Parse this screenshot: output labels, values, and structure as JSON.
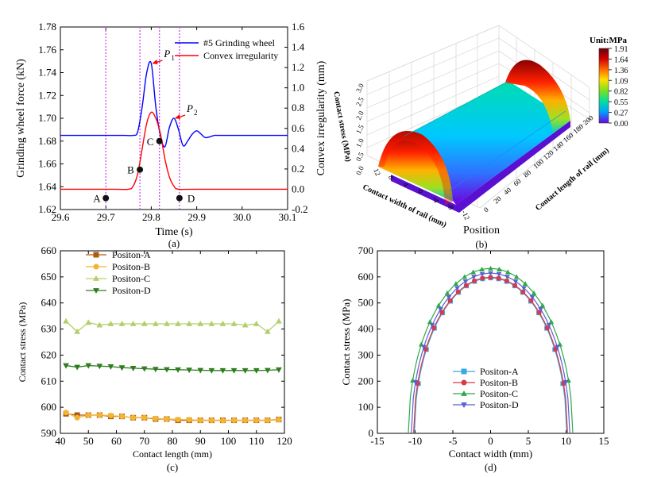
{
  "chart_data": [
    {
      "panel": "(a)",
      "type": "line",
      "xlabel": "Time (s)",
      "ylabel": "Grinding wheel force (kN)",
      "y2label": "Convex  irregularity (mm)",
      "xlim": [
        29.6,
        30.1
      ],
      "ylim": [
        1.62,
        1.78
      ],
      "y2lim": [
        -0.2,
        1.6
      ],
      "xticks": [
        "29.6",
        "29.7",
        "29.8",
        "29.9",
        "30.0",
        "30.1"
      ],
      "yticks": [
        "1.62",
        "1.64",
        "1.66",
        "1.68",
        "1.70",
        "1.72",
        "1.74",
        "1.76",
        "1.78"
      ],
      "y2ticks": [
        "-0.2",
        "0.0",
        "0.2",
        "0.4",
        "0.6",
        "0.8",
        "1.0",
        "1.2",
        "1.4",
        "1.6"
      ],
      "legend_position": "top-right",
      "series": [
        {
          "name": "#5 Grinding wheel",
          "axis": "left",
          "color": "#0000ff",
          "x": [
            29.6,
            29.72,
            29.74,
            29.76,
            29.77,
            29.78,
            29.79,
            29.8,
            29.81,
            29.82,
            29.83,
            29.84,
            29.85,
            29.86,
            29.87,
            29.88,
            29.89,
            29.9,
            29.91,
            29.92,
            29.94,
            29.96,
            30.1
          ],
          "y": [
            1.685,
            1.685,
            1.685,
            1.685,
            1.688,
            1.71,
            1.74,
            1.748,
            1.71,
            1.685,
            1.675,
            1.692,
            1.7,
            1.69,
            1.676,
            1.68,
            1.686,
            1.689,
            1.686,
            1.683,
            1.685,
            1.685,
            1.685
          ]
        },
        {
          "name": "Convex irregularity",
          "axis": "right",
          "color": "#ff0000",
          "x": [
            29.6,
            29.72,
            29.75,
            29.76,
            29.77,
            29.78,
            29.79,
            29.8,
            29.81,
            29.82,
            29.83,
            29.84,
            29.85,
            29.86,
            29.9,
            30.1
          ],
          "y": [
            0,
            0,
            0,
            0.03,
            0.15,
            0.4,
            0.65,
            0.76,
            0.7,
            0.55,
            0.3,
            0.12,
            0.03,
            0,
            0,
            0
          ]
        }
      ],
      "points": [
        {
          "label": "A",
          "x": 29.7,
          "y": 1.63
        },
        {
          "label": "B",
          "x": 29.775,
          "y": 1.655
        },
        {
          "label": "C",
          "x": 29.818,
          "y": 1.68
        },
        {
          "label": "D",
          "x": 29.862,
          "y": 1.63
        }
      ],
      "annotations": [
        {
          "label": "P",
          "sub": "1",
          "x": 29.8,
          "y": 1.748
        },
        {
          "label": "P",
          "sub": "2",
          "x": 29.85,
          "y": 1.7
        }
      ],
      "vlines_x": [
        29.7,
        29.775,
        29.818,
        29.862
      ],
      "vline_color": "#cc44ff"
    },
    {
      "panel": "(b)",
      "type": "surface3d",
      "zlabel": "Contact stress (MPa)",
      "xlabel": "Contact width of rail (mm)",
      "ylabel": "Contact length of rail (mm)",
      "footer_label": "Position",
      "x_ticks": [
        "12",
        "8",
        "4",
        "0",
        "-4",
        "-8",
        "-12"
      ],
      "y_ticks": [
        "0",
        "20",
        "40",
        "60",
        "80",
        "100",
        "120",
        "140",
        "160",
        "180",
        "200"
      ],
      "z_ticks": [
        "0.0",
        "0.5",
        "1.0",
        "1.5",
        "2.0",
        "2.5",
        "3.0"
      ],
      "colorbar_title": "Unit:MPa",
      "colorbar_ticks": [
        "1.91",
        "1.64",
        "1.36",
        "1.09",
        "0.82",
        "0.55",
        "0.27",
        "0.00"
      ],
      "colorbar_colors": [
        "#6a0010",
        "#d40000",
        "#ff6a00",
        "#ffe000",
        "#78e020",
        "#00e0a0",
        "#00a0ff",
        "#7000e0"
      ]
    },
    {
      "panel": "(c)",
      "type": "line",
      "xlabel": "Contact  length (mm)",
      "ylabel": "Contact stress (MPa)",
      "xlim": [
        40,
        120
      ],
      "ylim": [
        590,
        660
      ],
      "xticks": [
        "40",
        "50",
        "60",
        "70",
        "80",
        "90",
        "100",
        "110",
        "120"
      ],
      "yticks": [
        "590",
        "600",
        "610",
        "620",
        "630",
        "640",
        "650",
        "660"
      ],
      "legend_position": "top-left",
      "x": [
        42,
        46,
        50,
        54,
        58,
        62,
        66,
        70,
        74,
        78,
        82,
        86,
        90,
        94,
        98,
        102,
        106,
        110,
        114,
        118
      ],
      "series": [
        {
          "name": "Positon-A",
          "color": "#b05a10",
          "marker": "square",
          "values": [
            597.5,
            597,
            597,
            597,
            596.5,
            596.5,
            596,
            596,
            595.5,
            595.5,
            595,
            595,
            595,
            595,
            595,
            595,
            595,
            595,
            595,
            595.3
          ]
        },
        {
          "name": "Positon-B",
          "color": "#f2b530",
          "marker": "circle",
          "values": [
            598,
            596,
            597,
            597,
            596.8,
            596.5,
            596,
            596,
            595.7,
            595.5,
            595.3,
            595.2,
            595,
            595,
            594.9,
            595,
            595,
            595,
            595,
            595.2
          ]
        },
        {
          "name": "Positon-C",
          "color": "#b2d06a",
          "marker": "triangle-up",
          "values": [
            633,
            629,
            632.5,
            631.5,
            632,
            632,
            632,
            632,
            632,
            632,
            632,
            632,
            632,
            632,
            632,
            632,
            631.5,
            632,
            629,
            633
          ]
        },
        {
          "name": "Positon-D",
          "color": "#2e7d1e",
          "marker": "triangle-down",
          "values": [
            616,
            615.4,
            616,
            615.8,
            615.6,
            615.2,
            615,
            614.8,
            614.6,
            614.5,
            614.4,
            614.3,
            614.2,
            614.1,
            614.1,
            614.1,
            614.1,
            614.1,
            614.2,
            614.4
          ]
        }
      ]
    },
    {
      "panel": "(d)",
      "type": "line",
      "xlabel": "Contact width (mm)",
      "ylabel": "Contact stress (MPa)",
      "xlim": [
        -15,
        15
      ],
      "ylim": [
        0,
        700
      ],
      "xticks": [
        "-15",
        "-10",
        "-5",
        "0",
        "5",
        "10",
        "15"
      ],
      "yticks": [
        "0",
        "100",
        "200",
        "300",
        "400",
        "500",
        "600",
        "700"
      ],
      "legend_position": "lower-center",
      "series": [
        {
          "name": "Positon-A",
          "color": "#3da8e0",
          "marker": "square",
          "half_width": 10.1,
          "peak": 596
        },
        {
          "name": "Positon-B",
          "color": "#d83a4a",
          "marker": "circle",
          "half_width": 10.2,
          "peak": 598
        },
        {
          "name": "Positon-C",
          "color": "#2fa84a",
          "marker": "triangle-up",
          "half_width": 10.9,
          "peak": 632
        },
        {
          "name": "Positon-D",
          "color": "#5a60d0",
          "marker": "triangle-down",
          "half_width": 10.5,
          "peak": 614
        }
      ]
    }
  ]
}
